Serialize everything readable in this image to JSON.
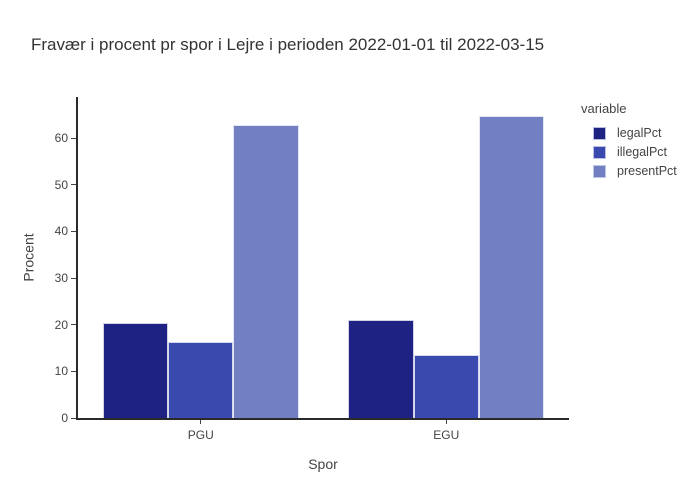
{
  "chart_data": {
    "type": "bar",
    "mode": "grouped",
    "title": "Fravær i procent pr spor i Lejre i perioden 2022-01-01 til 2022-03-15",
    "xlabel": "Spor",
    "ylabel": "Procent",
    "categories": [
      "PGU",
      "EGU"
    ],
    "series": [
      {
        "name": "legalPct",
        "color": "#1e2282",
        "values": [
          20.3,
          20.9
        ]
      },
      {
        "name": "illegalPct",
        "color": "#3a49ae",
        "values": [
          16.2,
          13.5
        ]
      },
      {
        "name": "presentPct",
        "color": "#7280c3",
        "values": [
          62.9,
          64.8
        ]
      }
    ],
    "legend_title": "variable",
    "legend_position": "right-top",
    "ylim": [
      0,
      68.8
    ],
    "yticks": [
      0,
      10,
      20,
      30,
      40,
      50,
      60
    ],
    "grid": false,
    "background": "#ffffff",
    "axis_color": "#2a2a2a",
    "text_color": "#444444",
    "bargap": 0.2
  }
}
